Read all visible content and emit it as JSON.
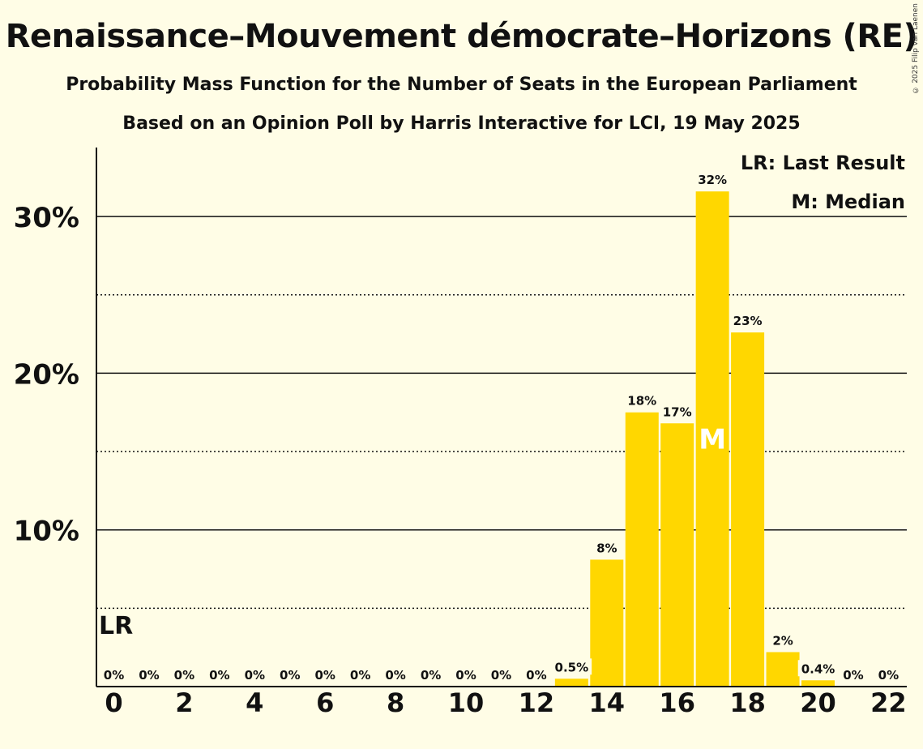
{
  "title": "Renaissance–Mouvement démocrate–Horizons (RE)",
  "subtitle": "Probability Mass Function for the Number of Seats in the European Parliament",
  "subtitle2": "Based on an Opinion Poll by Harris Interactive for LCI, 19 May 2025",
  "copyright": "© 2025 Filip van Laenen",
  "legend": {
    "last_result": "LR: Last Result",
    "median": "M: Median"
  },
  "colors": {
    "bar": "#ffd700",
    "background": "#fffde6",
    "axis": "#111111"
  },
  "chart_data": {
    "type": "bar",
    "x": [
      0,
      1,
      2,
      3,
      4,
      5,
      6,
      7,
      8,
      9,
      10,
      11,
      12,
      13,
      14,
      15,
      16,
      17,
      18,
      19,
      20,
      21,
      22
    ],
    "values": [
      0,
      0,
      0,
      0,
      0,
      0,
      0,
      0,
      0,
      0,
      0,
      0,
      0,
      0.5,
      8.1,
      17.5,
      16.8,
      31.6,
      22.6,
      2.2,
      0.4,
      0,
      0
    ],
    "data_labels": [
      "0%",
      "0%",
      "0%",
      "0%",
      "0%",
      "0%",
      "0%",
      "0%",
      "0%",
      "0%",
      "0%",
      "0%",
      "0%",
      "0.5%",
      "8%",
      "18%",
      "17%",
      "32%",
      "23%",
      "2%",
      "0.4%",
      "0%",
      "0%"
    ],
    "x_tick_labels": [
      "0",
      "2",
      "4",
      "6",
      "8",
      "10",
      "12",
      "14",
      "16",
      "18",
      "20",
      "22"
    ],
    "y_tick_labels": [
      "10%",
      "20%",
      "30%"
    ],
    "y_ticks": [
      10,
      20,
      30
    ],
    "y_minor_ticks": [
      5,
      15,
      25
    ],
    "ylim": [
      0,
      34.4
    ],
    "last_result_seat": 0,
    "last_result_label": "LR",
    "median_seat": 17,
    "median_label": "M",
    "legend_position": "top-right"
  }
}
